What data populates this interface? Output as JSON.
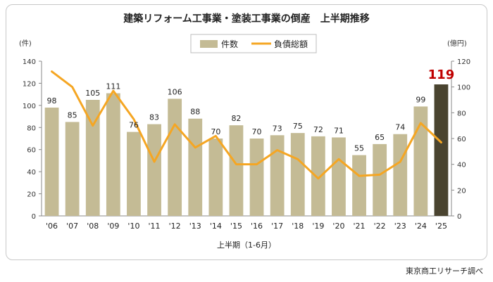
{
  "chart_data": {
    "type": "bar",
    "title": "建築リフォーム工事業・塗装工事業の倒産　上半期推移",
    "categories": [
      "'06",
      "'07",
      "'08",
      "'09",
      "'10",
      "'11",
      "'12",
      "'13",
      "'14",
      "'15",
      "'16",
      "'17",
      "'18",
      "'19",
      "'20",
      "'21",
      "'22",
      "'23",
      "'24",
      "'25"
    ],
    "series": [
      {
        "name": "件数",
        "kind": "bar",
        "axis": "left",
        "values": [
          98,
          85,
          105,
          111,
          76,
          83,
          106,
          88,
          70,
          82,
          70,
          73,
          75,
          72,
          71,
          55,
          65,
          74,
          99,
          119
        ],
        "color": "#c4bb95",
        "highlight_color": "#4a4430"
      },
      {
        "name": "負債総額",
        "kind": "line",
        "axis": "right",
        "values": [
          112,
          100,
          70,
          97,
          75,
          42,
          71,
          53,
          62,
          40,
          40,
          51,
          44,
          29,
          44,
          31,
          32,
          42,
          72,
          57
        ],
        "color": "#f5a623"
      }
    ],
    "left_axis": {
      "unit": "(件)",
      "ylim": [
        0,
        140
      ],
      "ticks": [
        0,
        20,
        40,
        60,
        80,
        100,
        120,
        140
      ]
    },
    "right_axis": {
      "unit": "(億円)",
      "ylim": [
        0,
        120
      ],
      "ticks": [
        0,
        20,
        40,
        60,
        80,
        100,
        120
      ]
    },
    "xlabel": "上半期（1-6月）",
    "legend": {
      "placement": "top-center",
      "items": [
        "件数",
        "負債総額"
      ]
    },
    "grid": false
  },
  "source": "東京商工リサーチ調べ"
}
